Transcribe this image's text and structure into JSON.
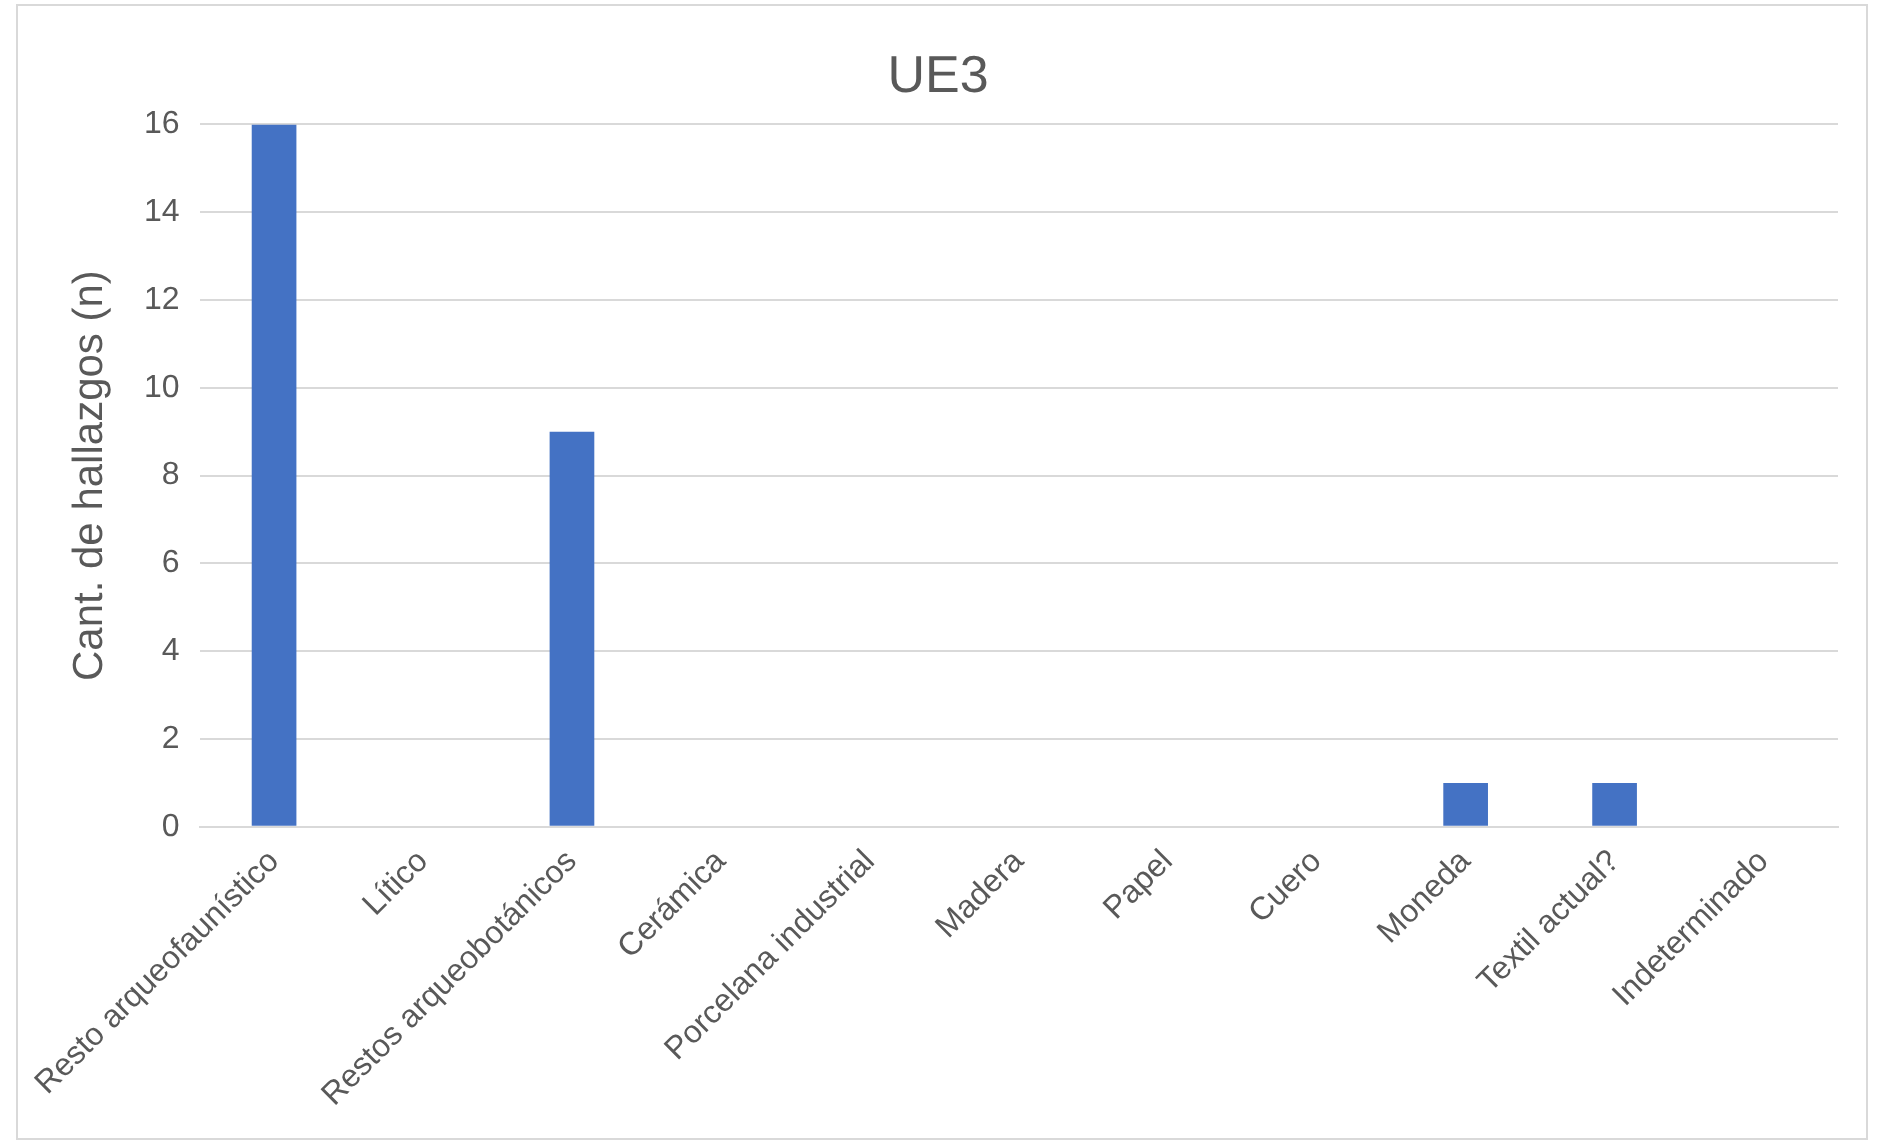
{
  "chart_data": {
    "type": "bar",
    "title": "UE3",
    "ylabel": "Cant. de hallazgos (n)",
    "categories": [
      "Resto arqueofaunístico",
      "Lítico",
      "Restos arqueobotánicos",
      "Cerámica",
      "Porcelana industrial",
      "Madera",
      "Papel",
      "Cuero",
      "Moneda",
      "Textil actual?",
      "Indeterminado"
    ],
    "values": [
      16,
      0,
      9,
      0,
      0,
      0,
      0,
      0,
      1,
      1,
      0
    ],
    "color": "#4472c4",
    "ylim": [
      0,
      16
    ],
    "yticks": [
      0,
      2,
      4,
      6,
      8,
      10,
      12,
      14,
      16
    ],
    "grid": "y",
    "legend": false
  }
}
